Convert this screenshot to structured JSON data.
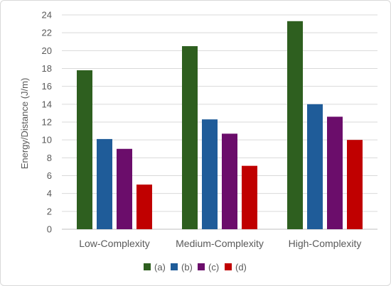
{
  "chart_data": {
    "type": "bar",
    "title": "",
    "xlabel": "",
    "ylabel": "Energy/Distance (J/m)",
    "categories": [
      "Low-Complexity",
      "Medium-Complexity",
      "High-Complexity"
    ],
    "series": [
      {
        "name": "(a)",
        "color": "#2e5f1f",
        "values": [
          17.8,
          20.5,
          23.3
        ]
      },
      {
        "name": "(b)",
        "color": "#1f5c99",
        "values": [
          10.1,
          12.3,
          14.0
        ]
      },
      {
        "name": "(c)",
        "color": "#6b0d6b",
        "values": [
          9.0,
          10.7,
          12.6
        ]
      },
      {
        "name": "(d)",
        "color": "#c00000",
        "values": [
          5.0,
          7.1,
          10.0
        ]
      }
    ],
    "ylim": [
      0,
      24
    ],
    "yticks": [
      "0",
      "2",
      "4",
      "6",
      "8",
      "10",
      "12",
      "14",
      "16",
      "18",
      "20",
      "22",
      "24"
    ],
    "grid": true,
    "legend_position": "bottom"
  }
}
